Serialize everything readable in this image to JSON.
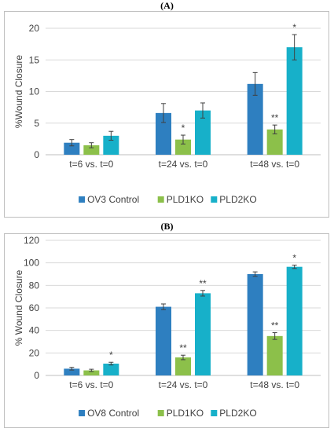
{
  "colors": {
    "ctrl": "#2E7FC0",
    "pld1": "#8CC04A",
    "pld2": "#17B0C9",
    "grid": "#d9d9d9",
    "axis": "#bfbfbf"
  },
  "chart_data": [
    {
      "panel_label": "(A)",
      "type": "bar",
      "categories": [
        "t=6 vs. t=0",
        "t=24 vs. t=0",
        "t=48 vs. t=0"
      ],
      "ylabel": "%Wound Closure",
      "xlabel": "",
      "ylim": [
        0,
        20
      ],
      "yticks": [
        0,
        5,
        10,
        15,
        20
      ],
      "grid": true,
      "legend_position": "bottom",
      "series": [
        {
          "name": "OV3 Control",
          "values": [
            1.9,
            6.6,
            11.2
          ],
          "errors": [
            0.5,
            1.5,
            1.8
          ],
          "annotations": [
            "",
            "",
            ""
          ]
        },
        {
          "name": "PLD1KO",
          "values": [
            1.5,
            2.4,
            4.0
          ],
          "errors": [
            0.4,
            0.7,
            0.7
          ],
          "annotations": [
            "",
            "*",
            "**"
          ]
        },
        {
          "name": "PLD2KO",
          "values": [
            3.0,
            7.0,
            17.0
          ],
          "errors": [
            0.7,
            1.2,
            2.0
          ],
          "annotations": [
            "",
            "",
            "*"
          ]
        }
      ]
    },
    {
      "panel_label": "(B)",
      "type": "bar",
      "categories": [
        "t=6 vs. t=0",
        "t=24 vs. t=0",
        "t=48 vs. t=0"
      ],
      "ylabel": "% Wound Closure",
      "xlabel": "",
      "ylim": [
        0,
        120
      ],
      "yticks": [
        0,
        20,
        40,
        60,
        80,
        100,
        120
      ],
      "grid": true,
      "legend_position": "bottom",
      "series": [
        {
          "name": "OV8 Control",
          "values": [
            6,
            61,
            90
          ],
          "errors": [
            1.2,
            2.5,
            2.0
          ],
          "annotations": [
            "",
            "",
            ""
          ]
        },
        {
          "name": "PLD1KO",
          "values": [
            4.5,
            16,
            35
          ],
          "errors": [
            1.0,
            2.0,
            3.0
          ],
          "annotations": [
            "",
            "**",
            "**"
          ]
        },
        {
          "name": "PLD2KO",
          "values": [
            10.5,
            73,
            96.5
          ],
          "errors": [
            1.2,
            2.5,
            1.5
          ],
          "annotations": [
            "*",
            "**",
            "*"
          ]
        }
      ]
    }
  ]
}
